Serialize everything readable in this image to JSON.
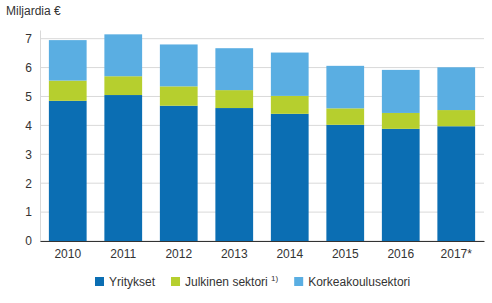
{
  "chart_data": {
    "type": "bar",
    "stacked": true,
    "grid": true,
    "legend": "bottom",
    "y_label": "Miljardia €",
    "categories": [
      "2010",
      "2011",
      "2012",
      "2013",
      "2014",
      "2015",
      "2016",
      "2017*"
    ],
    "series": [
      {
        "name": "Yritykset",
        "color": "#0b6eb3",
        "values": [
          4.85,
          5.05,
          4.68,
          4.6,
          4.4,
          4.02,
          3.88,
          3.97
        ]
      },
      {
        "name": "Julkinen sektori 1)",
        "color": "#b6cf2e",
        "values": [
          0.7,
          0.65,
          0.67,
          0.62,
          0.62,
          0.57,
          0.55,
          0.56
        ]
      },
      {
        "name": "Korkeakoulusektori",
        "color": "#5aaee2",
        "values": [
          1.4,
          1.45,
          1.45,
          1.45,
          1.5,
          1.47,
          1.49,
          1.48
        ]
      }
    ],
    "ylim": [
      0,
      7.3
    ],
    "yticks": [
      0,
      1,
      2,
      3,
      4,
      5,
      6,
      7
    ]
  }
}
